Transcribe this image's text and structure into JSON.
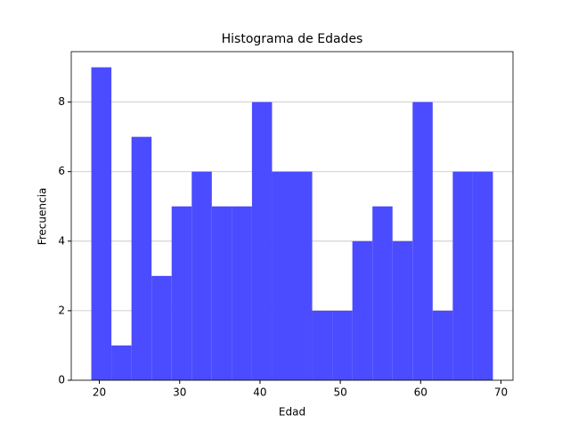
{
  "chart_data": {
    "type": "histogram",
    "title": "Histograma de Edades",
    "xlabel": "Edad",
    "ylabel": "Frecuencia",
    "bins": [
      19,
      21.5,
      24,
      26.5,
      29,
      31.5,
      34,
      36.5,
      39,
      41.5,
      44,
      46.5,
      49,
      51.5,
      54,
      56.5,
      59,
      61.5,
      64,
      66.5,
      69
    ],
    "counts": [
      9,
      1,
      7,
      3,
      5,
      6,
      5,
      5,
      8,
      6,
      6,
      2,
      2,
      4,
      5,
      4,
      8,
      2,
      6,
      6
    ],
    "color": "#4b4bff",
    "xlim": [
      16.5,
      71.5
    ],
    "xticks": [
      20,
      30,
      40,
      50,
      60,
      70
    ],
    "ylim": [
      0,
      9.45
    ],
    "yticks": [
      0,
      2,
      4,
      6,
      8
    ],
    "grid": "y"
  }
}
